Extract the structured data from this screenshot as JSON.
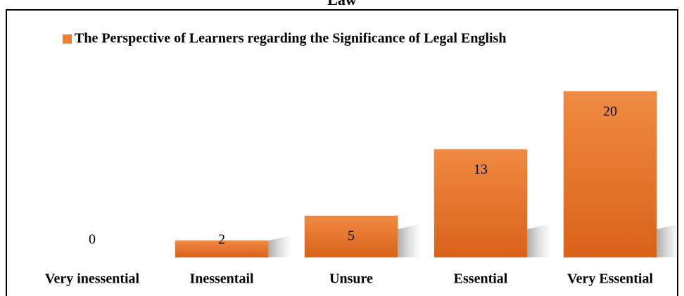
{
  "chart_data": {
    "type": "bar",
    "title": "Law",
    "categories": [
      "Very inessential",
      "Inessentail",
      "Unsure",
      "Essential",
      "Very Essential"
    ],
    "series": [
      {
        "name": "The Perspective of Learners regarding the Significance of Legal English",
        "color": "#ed7d31",
        "values": [
          0,
          2,
          5,
          13,
          20
        ]
      }
    ]
  }
}
